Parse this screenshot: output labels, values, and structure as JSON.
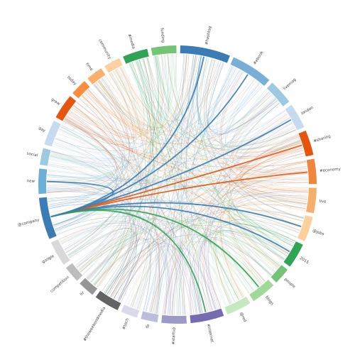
{
  "chart_data": {
    "type": "chord",
    "nodes": [
      {
        "label": "#hashtag",
        "color": "#3c7cb4",
        "weight": 6
      },
      {
        "label": "#ebook",
        "color": "#79aed6",
        "weight": 5
      },
      {
        "label": "livemag",
        "color": "#9ecae1",
        "weight": 3
      },
      {
        "label": "london",
        "color": "#c6dbef",
        "weight": 3
      },
      {
        "label": "#sharing",
        "color": "#e6550d",
        "weight": 3
      },
      {
        "label": "#economy",
        "color": "#f0853c",
        "weight": 3
      },
      {
        "label": "live",
        "color": "#f5ae6b",
        "weight": 3
      },
      {
        "label": "@jobs",
        "color": "#fbd09c",
        "weight": 3
      },
      {
        "label": "2015",
        "color": "#31a354",
        "weight": 3
      },
      {
        "label": "people",
        "color": "#74c476",
        "weight": 2
      },
      {
        "label": "blogs",
        "color": "#a1d99b",
        "weight": 3
      },
      {
        "label": "@red",
        "color": "#c7e9c0",
        "weight": 3
      },
      {
        "label": "#internet",
        "color": "#756bb1",
        "weight": 4
      },
      {
        "label": "#startup",
        "color": "#9e9ac8",
        "weight": 3
      },
      {
        "label": "fb",
        "color": "#bcbddc",
        "weight": 2
      },
      {
        "label": "#tech",
        "color": "#dadaeb",
        "weight": 2
      },
      {
        "label": "#theweekendmedia",
        "color": "#636363",
        "weight": 3
      },
      {
        "label": "hr",
        "color": "#969696",
        "weight": 2
      },
      {
        "label": "competition",
        "color": "#bdbdbd",
        "weight": 2
      },
      {
        "label": "google",
        "color": "#d9d9d9",
        "weight": 3
      },
      {
        "label": "@company",
        "color": "#3c7cb4",
        "weight": 5
      },
      {
        "label": "new",
        "color": "#6baed6",
        "weight": 3
      },
      {
        "label": "social",
        "color": "#9ecae1",
        "weight": 2
      },
      {
        "label": "day",
        "color": "#c6dbef",
        "weight": 3
      },
      {
        "label": "grow",
        "color": "#e6550d",
        "weight": 3
      },
      {
        "label": "today",
        "color": "#fd8d3c",
        "weight": 2
      },
      {
        "label": "time",
        "color": "#fdae6b",
        "weight": 2
      },
      {
        "label": "community",
        "color": "#fdd0a2",
        "weight": 2
      },
      {
        "label": "#media",
        "color": "#31a354",
        "weight": 3
      },
      {
        "label": "funding",
        "color": "#74c476",
        "weight": 3
      }
    ],
    "highlight_links": [
      {
        "source": 20,
        "target": 0,
        "color": "#3c7cb4"
      },
      {
        "source": 20,
        "target": 1,
        "color": "#3c7cb4"
      },
      {
        "source": 20,
        "target": 3,
        "color": "#3c7cb4"
      },
      {
        "source": 20,
        "target": 4,
        "color": "#e6550d"
      },
      {
        "source": 20,
        "target": 5,
        "color": "#e6550d"
      },
      {
        "source": 20,
        "target": 7,
        "color": "#3c7cb4"
      },
      {
        "source": 20,
        "target": 8,
        "color": "#3c7cb4"
      },
      {
        "source": 20,
        "target": 10,
        "color": "#31a354"
      },
      {
        "source": 20,
        "target": 12,
        "color": "#31a354"
      },
      {
        "source": 20,
        "target": 21,
        "color": "#3c7cb4"
      }
    ]
  }
}
